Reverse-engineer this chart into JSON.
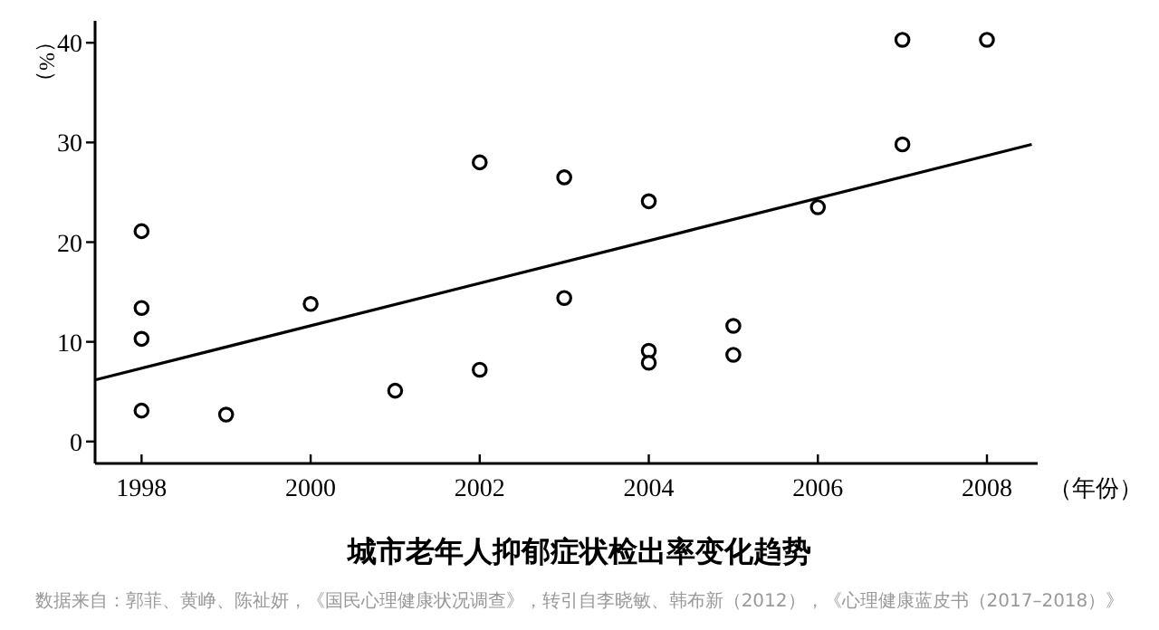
{
  "chart_data": {
    "type": "scatter",
    "title": "城市老年人抑郁症状检出率变化趋势",
    "xlabel": "（年份）",
    "ylabel": "（%）",
    "annotations": [
      "数据来自：郭菲、黄峥、陈祉妍，《国民心理健康状况调查》，转引自李晓敏、韩布新（2012），《心理健康蓝皮书（2017–2018）》"
    ],
    "xlim": [
      1997.45,
      2008.6
    ],
    "xticks": [
      1998,
      2000,
      2002,
      2004,
      2006,
      2008
    ],
    "ylim": [
      -2.2,
      42.2
    ],
    "yticks": [
      0,
      10,
      20,
      30,
      40
    ],
    "grid": false,
    "marker": "circle",
    "series": [
      {
        "color": "#000000",
        "x": [
          1998,
          1998,
          1998,
          1998,
          1999,
          2000,
          2001,
          2002,
          2002,
          2003,
          2003,
          2004,
          2004,
          2004,
          2005,
          2005,
          2006,
          2007,
          2007,
          2008
        ],
        "values": [
          21.1,
          13.4,
          10.3,
          3.1,
          2.7,
          13.8,
          5.1,
          28.0,
          7.2,
          26.5,
          14.4,
          24.1,
          9.1,
          7.9,
          11.6,
          8.7,
          23.5,
          40.3,
          29.8,
          40.3
        ]
      },
      {
        "type": "line",
        "color": "#000000",
        "line_style": "solid",
        "marker": "none",
        "x": [
          1997.46,
          2008.53
        ],
        "values": [
          6.2,
          29.8
        ]
      }
    ]
  }
}
